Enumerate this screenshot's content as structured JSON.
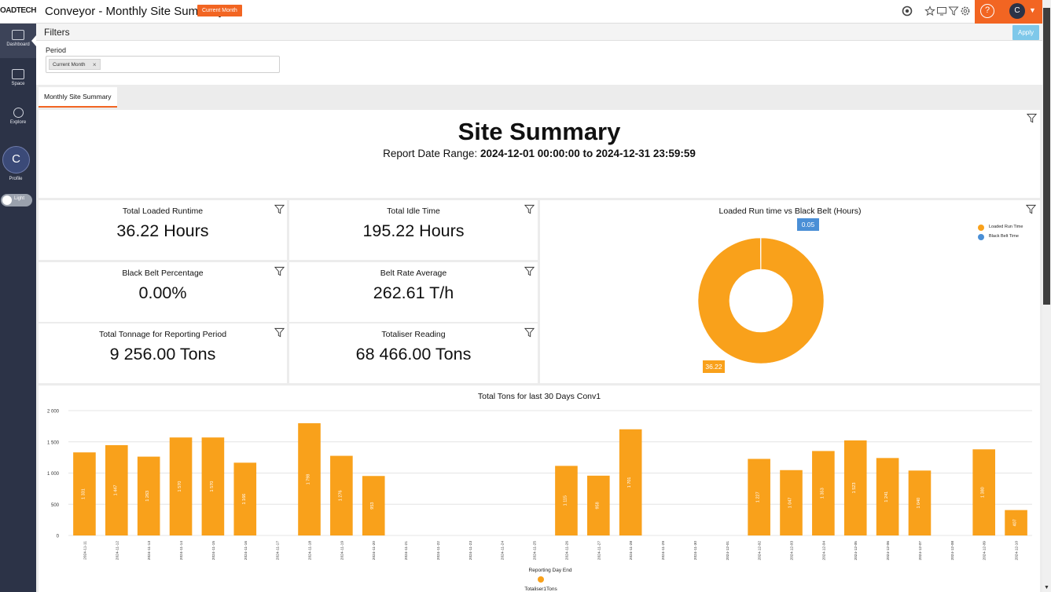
{
  "header": {
    "logo_text": "OADTECH",
    "title": "Conveyor - Monthly Site Summary",
    "period_badge": "Current Month",
    "user_initial": "C",
    "icons": [
      "globe-gear-icon",
      "star-icon",
      "screen-icon",
      "filter-icon",
      "gear-icon",
      "help-icon",
      "chevron-down-icon"
    ]
  },
  "sidebar": {
    "items": [
      {
        "label": "Dashboard",
        "icon": "dashboard-icon"
      },
      {
        "label": "Space",
        "icon": "folder-icon"
      },
      {
        "label": "Explore",
        "icon": "explore-icon"
      }
    ],
    "profile_initial": "C",
    "profile_label": "Profile",
    "theme_label": "Light"
  },
  "filters": {
    "title": "Filters",
    "apply_label": "Apply",
    "period_label": "Period",
    "period_chip": "Current Month",
    "chip_remove": "×"
  },
  "tabs": [
    {
      "label": "Monthly Site Summary"
    }
  ],
  "summary": {
    "title": "Site Summary",
    "range_prefix": "Report Date Range: ",
    "range_value": "2024-12-01 00:00:00 to 2024-12-31 23:59:59"
  },
  "kpis": [
    {
      "title": "Total Loaded Runtime",
      "value": "36.22 Hours"
    },
    {
      "title": "Total Idle Time",
      "value": "195.22 Hours"
    },
    {
      "title": "Black Belt Percentage",
      "value": "0.00%"
    },
    {
      "title": "Belt Rate Average",
      "value": "262.61 T/h"
    },
    {
      "title": "Total Tonnage for Reporting Period",
      "value": "9 256.00 Tons"
    },
    {
      "title": "Totaliser Reading",
      "value": "68 466.00 Tons"
    }
  ],
  "colors": {
    "accent": "#f26522",
    "bar": "#f9a11b",
    "black_belt": "#4a8fd6",
    "sidebar": "#2c3347"
  },
  "chart_data": [
    {
      "type": "pie",
      "title": "Loaded Run time vs Black Belt (Hours)",
      "labels": [
        "Loaded Run Time",
        "Black Belt Time"
      ],
      "values": [
        36.22,
        0.05
      ],
      "data_labels": [
        "36.22",
        "0.05"
      ],
      "legend": "top-right",
      "donut": true
    },
    {
      "type": "bar",
      "title": "Total Tons for last 30 Days Conv1",
      "xlabel": "Reporting Day End",
      "legend_entry": "Totaliser1Tons",
      "ylim": [
        0,
        2000
      ],
      "yticks": [
        "0",
        "500",
        "1 000",
        "1 500",
        "2 000"
      ],
      "categories": [
        "2024-11-11",
        "2024-11-12",
        "2024-11-13",
        "2024-11-14",
        "2024-11-15",
        "2024-11-16",
        "2024-11-17",
        "2024-11-18",
        "2024-11-19",
        "2024-11-20",
        "2024-11-21",
        "2024-11-22",
        "2024-11-23",
        "2024-11-24",
        "2024-11-25",
        "2024-11-26",
        "2024-11-27",
        "2024-11-28",
        "2024-11-29",
        "2024-11-30",
        "2024-12-01",
        "2024-12-02",
        "2024-12-03",
        "2024-12-04",
        "2024-12-05",
        "2024-12-06",
        "2024-12-07",
        "2024-12-08",
        "2024-12-09",
        "2024-12-10"
      ],
      "values": [
        1331,
        1447,
        1263,
        1570,
        1570,
        1166,
        null,
        1798,
        1276,
        953,
        null,
        null,
        null,
        null,
        null,
        1115,
        958,
        1701,
        null,
        null,
        null,
        1227,
        1047,
        1353,
        1523,
        1241,
        1040,
        null,
        1380,
        407
      ],
      "data_labels": [
        "1 331",
        "1 447",
        "1 263",
        "1 570",
        "1 570",
        "1 166",
        "",
        "1 798",
        "1 276",
        "953",
        "",
        "",
        "",
        "",
        "",
        "1 115",
        "958",
        "1 701",
        "",
        "",
        "",
        "1 227",
        "1 047",
        "1 353",
        "1 523",
        "1 241",
        "1 040",
        "",
        "1 380",
        "407"
      ],
      "grid": true
    }
  ]
}
